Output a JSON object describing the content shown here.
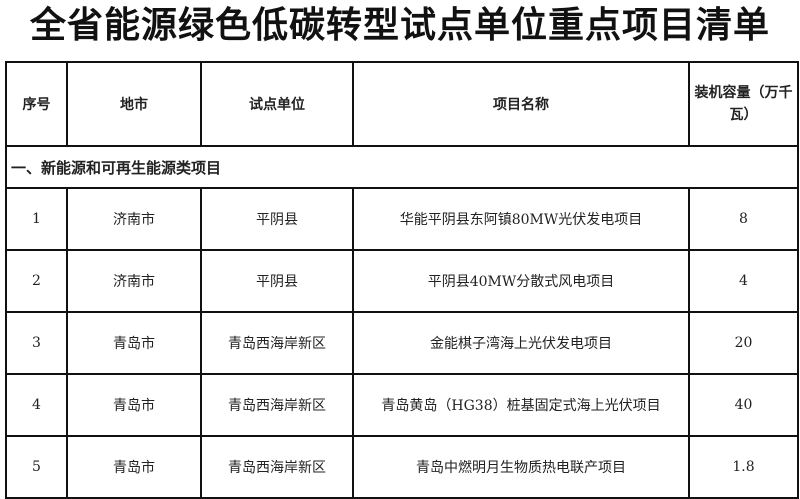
{
  "title": "全省能源绿色低碳转型试点单位重点项目清单",
  "table": {
    "headers": [
      "序号",
      "地市",
      "试点单位",
      "项目名称",
      "装机容量（万千瓦）"
    ],
    "section": "一、新能源和可再生能源类项目",
    "rows": [
      [
        "1",
        "济南市",
        "平阴县",
        "华能平阴县东阿镇80MW光伏发电项目",
        "8"
      ],
      [
        "2",
        "济南市",
        "平阴县",
        "平阴县40MW分散式风电项目",
        "4"
      ],
      [
        "3",
        "青岛市",
        "青岛西海岸新区",
        "金能棋子湾海上光伏发电项目",
        "20"
      ],
      [
        "4",
        "青岛市",
        "青岛西海岸新区",
        "青岛黄岛（HG38）桩基固定式海上光伏项目",
        "40"
      ],
      [
        "5",
        "青岛市",
        "青岛西海岸新区",
        "青岛中燃明月生物质热电联产项目",
        "1.8"
      ]
    ]
  }
}
